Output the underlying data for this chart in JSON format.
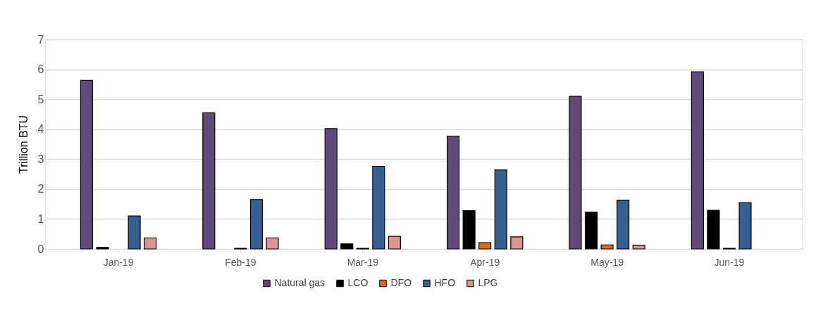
{
  "chart_data": {
    "type": "bar",
    "ylabel": "Trillion BTU",
    "categories": [
      "Jan-19",
      "Feb-19",
      "Mar-19",
      "Apr-19",
      "May-19",
      "Jun-19"
    ],
    "series": [
      {
        "name": "Natural gas",
        "color": "#604a7b",
        "values": [
          5.63,
          4.55,
          4.02,
          3.77,
          5.1,
          5.92
        ]
      },
      {
        "name": "LCO",
        "color": "#000000",
        "values": [
          0.05,
          0,
          0.17,
          1.28,
          1.23,
          1.29
        ]
      },
      {
        "name": "DFO",
        "color": "#e46c0a",
        "values": [
          0,
          0.02,
          0.02,
          0.21,
          0.13,
          0.02
        ]
      },
      {
        "name": "HFO",
        "color": "#366092",
        "values": [
          1.1,
          1.65,
          2.76,
          2.64,
          1.63,
          1.55
        ]
      },
      {
        "name": "LPG",
        "color": "#d99594",
        "values": [
          0.37,
          0.37,
          0.42,
          0.4,
          0.12,
          0
        ]
      }
    ],
    "ylim": [
      0,
      7
    ],
    "yticks": [
      0,
      1,
      2,
      3,
      4,
      5,
      6,
      7
    ],
    "grid": "y",
    "legend": "bottom"
  }
}
